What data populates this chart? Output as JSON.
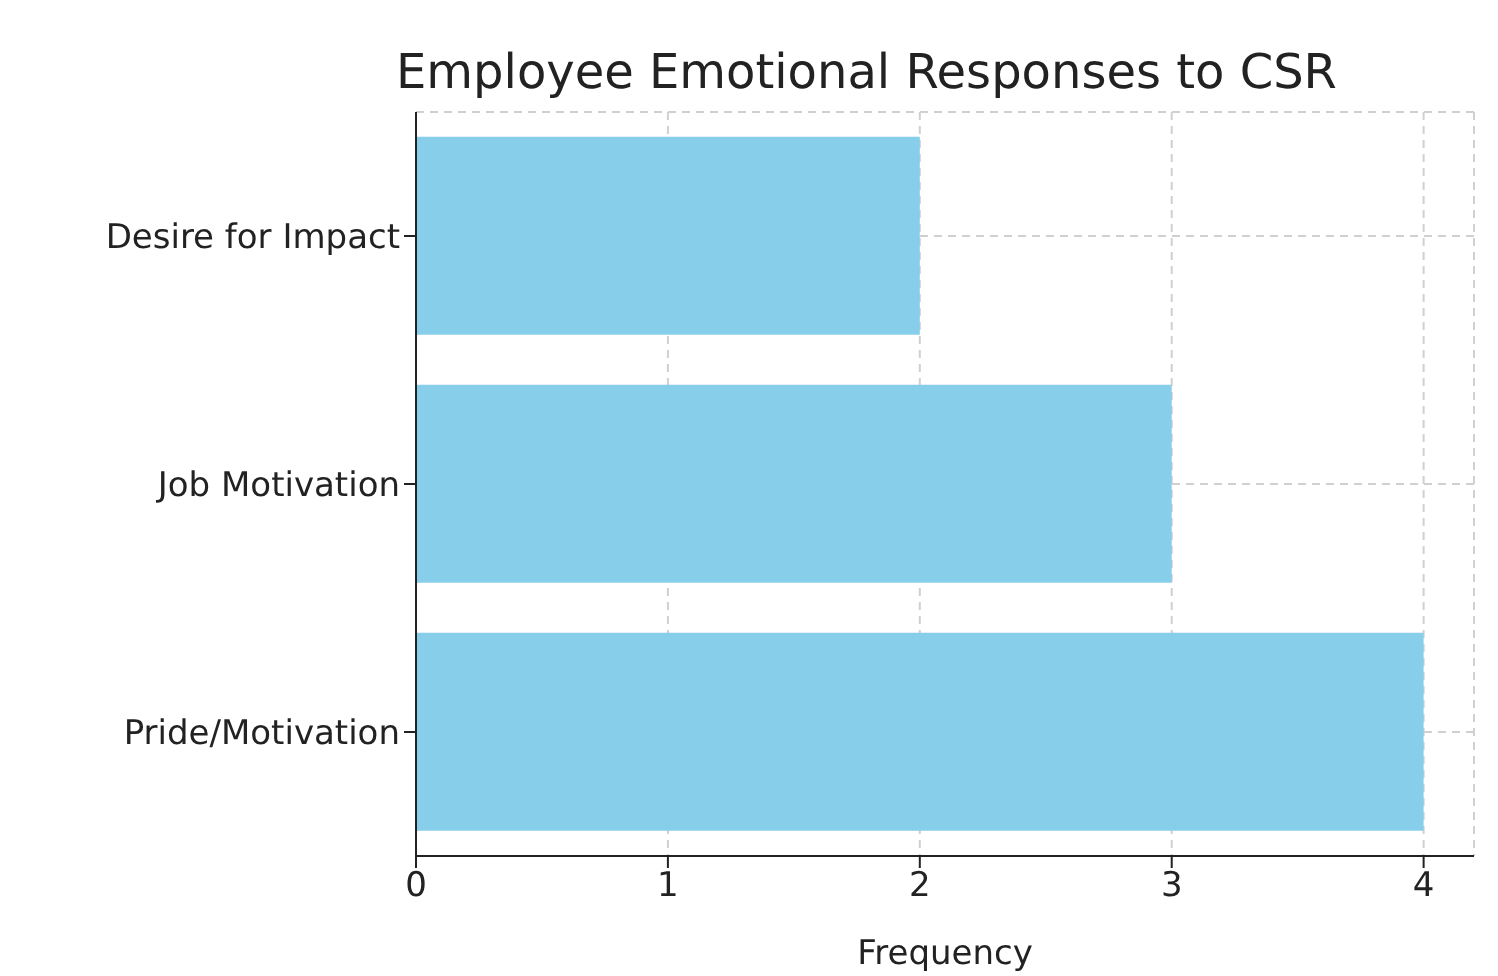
{
  "chart_data": {
    "type": "bar",
    "orientation": "horizontal",
    "title": "Employee Emotional Responses to CSR",
    "xlabel": "Frequency",
    "categories": [
      "Desire for Impact",
      "Job Motivation",
      "Pride/Motivation"
    ],
    "values": [
      2,
      3,
      4
    ],
    "color": "#87ceeb",
    "xlim": [
      0,
      4.2
    ],
    "xticks": [
      0,
      1,
      2,
      3,
      4
    ],
    "grid": true
  }
}
